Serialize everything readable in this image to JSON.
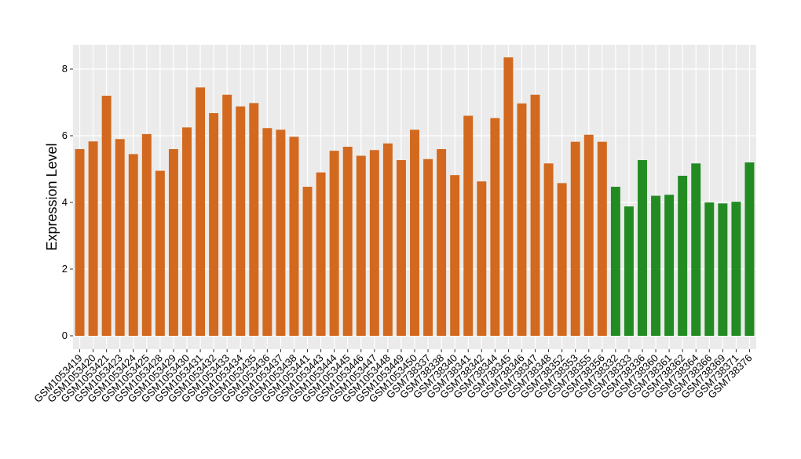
{
  "chart_data": {
    "type": "bar",
    "y_label": "Expression Level",
    "categories": [
      "GSM1053419",
      "GSM1053420",
      "GSM1053421",
      "GSM1053423",
      "GSM1053424",
      "GSM1053425",
      "GSM1053428",
      "GSM1053429",
      "GSM1053430",
      "GSM1053431",
      "GSM1053432",
      "GSM1053433",
      "GSM1053434",
      "GSM1053435",
      "GSM1053436",
      "GSM1053437",
      "GSM1053438",
      "GSM1053441",
      "GSM1053443",
      "GSM1053444",
      "GSM1053445",
      "GSM1053446",
      "GSM1053447",
      "GSM1053448",
      "GSM1053449",
      "GSM1053450",
      "GSM738337",
      "GSM738338",
      "GSM738340",
      "GSM738341",
      "GSM738342",
      "GSM738344",
      "GSM738345",
      "GSM738346",
      "GSM738347",
      "GSM738348",
      "GSM738352",
      "GSM738353",
      "GSM738355",
      "GSM738356",
      "GSM738332",
      "GSM738333",
      "GSM738336",
      "GSM738360",
      "GSM738361",
      "GSM738362",
      "GSM738364",
      "GSM738366",
      "GSM738369",
      "GSM738371",
      "GSM738376"
    ],
    "values": [
      5.6,
      5.83,
      7.2,
      5.9,
      5.45,
      6.05,
      4.95,
      5.6,
      6.25,
      7.45,
      6.68,
      7.23,
      6.88,
      6.98,
      6.23,
      6.18,
      5.97,
      4.47,
      4.9,
      5.55,
      5.67,
      5.4,
      5.57,
      5.77,
      5.27,
      6.18,
      5.3,
      5.6,
      4.82,
      6.6,
      4.63,
      6.53,
      8.35,
      6.97,
      7.23,
      5.17,
      4.58,
      5.82,
      6.03,
      5.82,
      4.47,
      3.88,
      5.27,
      4.2,
      4.23,
      4.8,
      5.17,
      4.0,
      3.97,
      4.02,
      5.2
    ],
    "colors": [
      "#d2691e",
      "#d2691e",
      "#d2691e",
      "#d2691e",
      "#d2691e",
      "#d2691e",
      "#d2691e",
      "#d2691e",
      "#d2691e",
      "#d2691e",
      "#d2691e",
      "#d2691e",
      "#d2691e",
      "#d2691e",
      "#d2691e",
      "#d2691e",
      "#d2691e",
      "#d2691e",
      "#d2691e",
      "#d2691e",
      "#d2691e",
      "#d2691e",
      "#d2691e",
      "#d2691e",
      "#d2691e",
      "#d2691e",
      "#d2691e",
      "#d2691e",
      "#d2691e",
      "#d2691e",
      "#d2691e",
      "#d2691e",
      "#d2691e",
      "#d2691e",
      "#d2691e",
      "#d2691e",
      "#d2691e",
      "#d2691e",
      "#d2691e",
      "#d2691e",
      "#228b22",
      "#228b22",
      "#228b22",
      "#228b22",
      "#228b22",
      "#228b22",
      "#228b22",
      "#228b22",
      "#228b22",
      "#228b22",
      "#228b22"
    ],
    "ylim": [
      -0.4,
      8.73
    ],
    "yticks": [
      0,
      2,
      4,
      6,
      8
    ],
    "grid": true
  }
}
